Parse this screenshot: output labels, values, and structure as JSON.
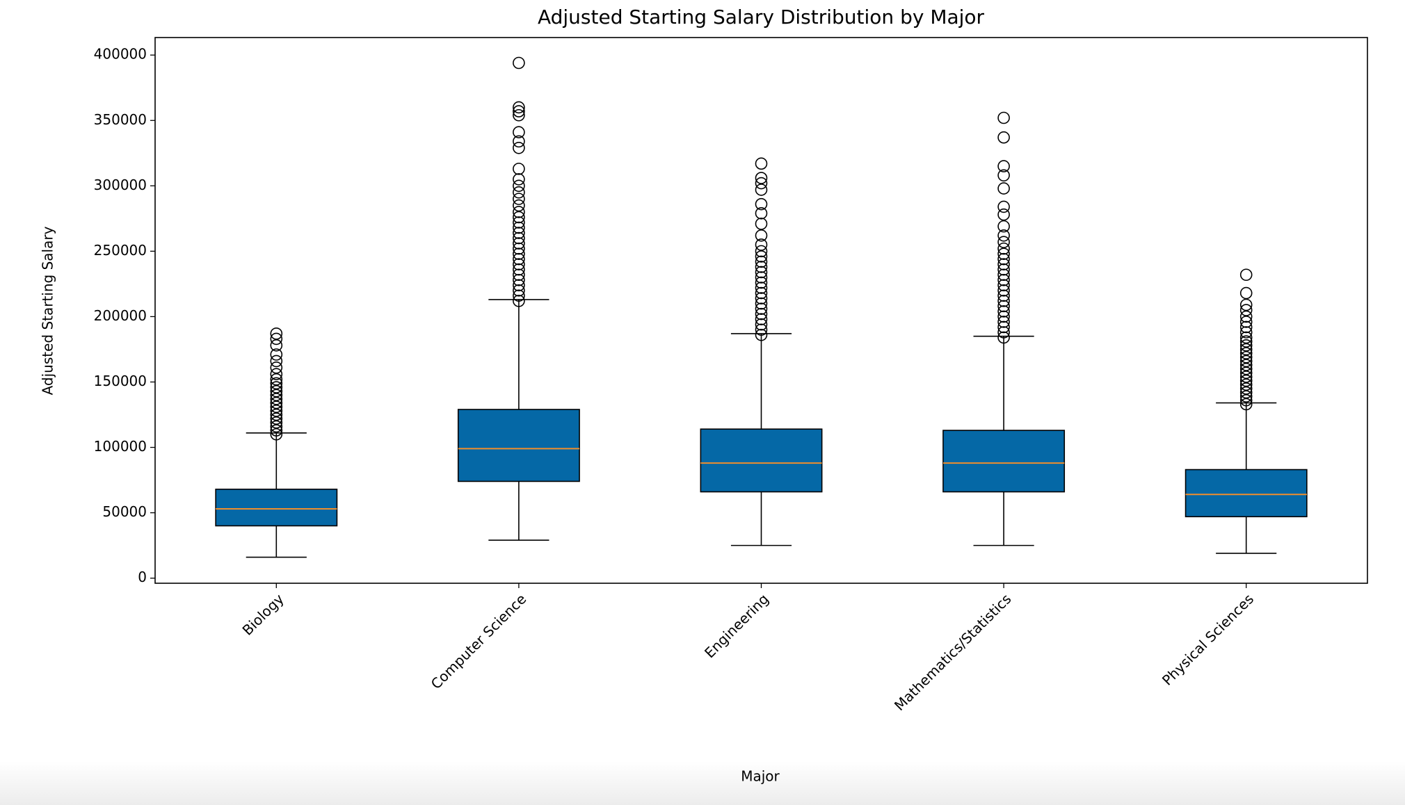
{
  "chart_data": {
    "type": "box",
    "title": "Adjusted Starting Salary Distribution by Major",
    "xlabel": "Major",
    "ylabel": "Adjusted Starting Salary",
    "box_color": "#0568a6",
    "median_color": "#f28e2b",
    "ylim": [
      -3900,
      413400
    ],
    "yticks": [
      0,
      50000,
      100000,
      150000,
      200000,
      250000,
      300000,
      350000,
      400000
    ],
    "categories": [
      "Biology",
      "Computer Science",
      "Engineering",
      "Mathematics/Statistics",
      "Physical Sciences"
    ],
    "series": [
      {
        "whislo": 16000,
        "q1": 40000,
        "med": 53000,
        "q3": 68000,
        "whishi": 111000,
        "fliers": [
          110000,
          113000,
          116000,
          119000,
          122000,
          125000,
          128000,
          131000,
          134000,
          137000,
          140000,
          143000,
          146000,
          149000,
          152000,
          156000,
          161000,
          166000,
          171000,
          178000,
          183000,
          187000
        ]
      },
      {
        "whislo": 29000,
        "q1": 74000,
        "med": 99000,
        "q3": 129000,
        "whishi": 213000,
        "fliers": [
          212000,
          216000,
          220000,
          224000,
          228000,
          232000,
          236000,
          240000,
          244000,
          248000,
          252000,
          256000,
          260000,
          264000,
          268000,
          272000,
          276000,
          280000,
          285000,
          290000,
          295000,
          300000,
          305000,
          313000,
          329000,
          334000,
          341000,
          354000,
          357000,
          360000,
          394000
        ]
      },
      {
        "whislo": 25000,
        "q1": 66000,
        "med": 88000,
        "q3": 114000,
        "whishi": 187000,
        "fliers": [
          186000,
          190000,
          194000,
          198000,
          202000,
          206000,
          210000,
          214000,
          218000,
          222000,
          226000,
          230000,
          234000,
          238000,
          242000,
          246000,
          250000,
          255000,
          262000,
          271000,
          279000,
          286000,
          297000,
          302000,
          306000,
          317000
        ]
      },
      {
        "whislo": 25000,
        "q1": 66000,
        "med": 88000,
        "q3": 113000,
        "whishi": 185000,
        "fliers": [
          184000,
          188000,
          192000,
          196000,
          200000,
          204000,
          208000,
          212000,
          216000,
          220000,
          224000,
          228000,
          232000,
          236000,
          240000,
          244000,
          248000,
          252000,
          257000,
          262000,
          269000,
          278000,
          284000,
          298000,
          308000,
          315000,
          337000,
          352000
        ]
      },
      {
        "whislo": 19000,
        "q1": 47000,
        "med": 64000,
        "q3": 83000,
        "whishi": 134000,
        "fliers": [
          133000,
          136000,
          139000,
          142000,
          145000,
          148000,
          151000,
          154000,
          157000,
          160000,
          163000,
          166000,
          169000,
          172000,
          175000,
          178000,
          181000,
          184000,
          188000,
          192000,
          196000,
          200000,
          205000,
          209000,
          218000,
          232000
        ]
      }
    ]
  }
}
